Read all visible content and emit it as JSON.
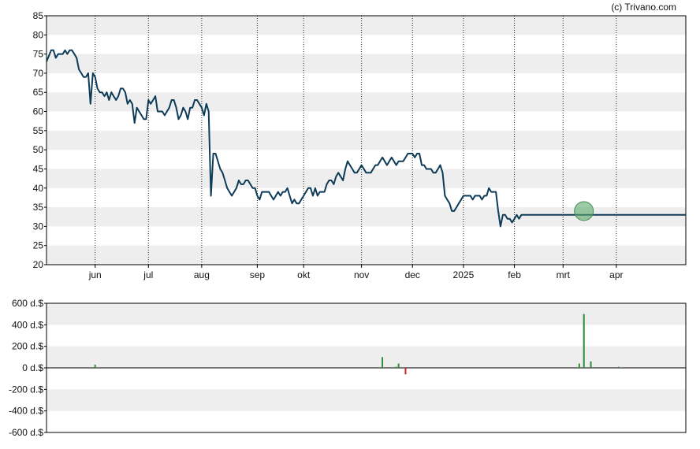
{
  "credit": "(c) Trivano.com",
  "colors": {
    "price_line": "#0d3b58",
    "band": "#eeeeee",
    "marker_fill": "#5aa86b",
    "bar_positive": "#2e8b3a",
    "bar_negative": "#cc2222"
  },
  "chart_data": [
    {
      "type": "line",
      "title": "",
      "ylim": [
        20,
        85
      ],
      "yticks": [
        20,
        25,
        30,
        35,
        40,
        45,
        50,
        55,
        60,
        65,
        70,
        75,
        80,
        85
      ],
      "ytick_labels": [
        "20",
        "25",
        "30",
        "35",
        "40",
        "45",
        "50",
        "55",
        "60",
        "65",
        "70",
        "75",
        "80",
        "85"
      ],
      "x_ticks": [
        {
          "label": "jun",
          "x": 21
        },
        {
          "label": "jul",
          "x": 44
        },
        {
          "label": "aug",
          "x": 67
        },
        {
          "label": "sep",
          "x": 91
        },
        {
          "label": "okt",
          "x": 111
        },
        {
          "label": "nov",
          "x": 136
        },
        {
          "label": "dec",
          "x": 158
        },
        {
          "label": "2025",
          "x": 180
        },
        {
          "label": "feb",
          "x": 202
        },
        {
          "label": "mrt",
          "x": 223
        },
        {
          "label": "apr",
          "x": 246
        }
      ],
      "xlim": [
        0,
        276
      ],
      "grid": "dotted vertical at month ticks, alternating horizontal bands",
      "series": [
        {
          "x": [
            0,
            2,
            3,
            4,
            5,
            6,
            7,
            8,
            9,
            10,
            11,
            12,
            13,
            14,
            15,
            16,
            17,
            18,
            19,
            20,
            21,
            22,
            23,
            24,
            25,
            26,
            27,
            28,
            29,
            30,
            31,
            32,
            33,
            34,
            35,
            36,
            37,
            38,
            39,
            40,
            41,
            42,
            43,
            44,
            45,
            46,
            47,
            48,
            49,
            50,
            51,
            52,
            53,
            54,
            55,
            56,
            57,
            58,
            59,
            60,
            61,
            62,
            63,
            64,
            65,
            66,
            67,
            68,
            69,
            70,
            71,
            72,
            73,
            74,
            75,
            76,
            77,
            78,
            79,
            80,
            81,
            82,
            83,
            84,
            85,
            86,
            87,
            88,
            89,
            90,
            91,
            92,
            93,
            94,
            95,
            96,
            97,
            98,
            99,
            100,
            101,
            102,
            103,
            104,
            105,
            106,
            107,
            108,
            109,
            110,
            111,
            112,
            113,
            114,
            115,
            116,
            117,
            118,
            119,
            120,
            121,
            122,
            123,
            124,
            125,
            126,
            127,
            128,
            129,
            130,
            131,
            132,
            133,
            134,
            135,
            136,
            137,
            138,
            139,
            140,
            141,
            142,
            143,
            144,
            145,
            146,
            147,
            148,
            149,
            150,
            151,
            152,
            153,
            154,
            155,
            156,
            157,
            158,
            159,
            160,
            161,
            162,
            163,
            164,
            165,
            166,
            167,
            168,
            169,
            170,
            171,
            172,
            173,
            174,
            175,
            176,
            177,
            178,
            179,
            180,
            181,
            182,
            183,
            184,
            185,
            186,
            187,
            188,
            189,
            190,
            191,
            192,
            193,
            194,
            195,
            196,
            197,
            198,
            199,
            200,
            201,
            202,
            203,
            204,
            205,
            206,
            207,
            208,
            209,
            210,
            211,
            212,
            213,
            214,
            215,
            216,
            217,
            218,
            219,
            220,
            221,
            222,
            223,
            224,
            225,
            226,
            227,
            228,
            229,
            230,
            231,
            232,
            233,
            234,
            235,
            236,
            237,
            238,
            239,
            240,
            241,
            242,
            243,
            244,
            245,
            246,
            247,
            248,
            249,
            250,
            251,
            252,
            253,
            254,
            255,
            256,
            257,
            258,
            259,
            260,
            261,
            262,
            263,
            264,
            265,
            266,
            267,
            268,
            269,
            270,
            271,
            272,
            273,
            274,
            275,
            276
          ],
          "values": [
            73,
            76,
            76,
            74,
            75,
            75,
            75,
            76,
            75,
            76,
            76,
            75,
            74,
            71,
            70,
            69,
            69,
            70,
            62,
            70,
            69,
            66,
            65,
            65,
            64,
            65,
            63,
            65,
            64,
            63,
            64,
            66,
            66,
            65,
            62,
            63,
            62,
            57,
            61,
            60,
            59,
            58,
            58,
            63,
            62,
            63,
            64,
            60,
            60,
            60,
            59,
            60,
            61,
            63,
            63,
            61,
            58,
            59,
            61,
            60,
            58,
            61,
            61,
            63,
            63,
            62,
            61,
            59,
            62,
            60,
            38,
            49,
            49,
            47,
            45,
            44,
            42,
            40,
            39,
            38,
            39,
            40,
            42,
            41,
            41,
            42,
            42,
            41,
            40,
            40,
            38,
            37,
            39,
            39,
            39,
            39,
            38,
            37,
            38,
            39,
            38,
            39,
            39,
            40,
            38,
            36,
            37,
            36,
            36,
            37,
            38,
            39,
            40,
            40,
            38,
            40,
            38,
            39,
            39,
            39,
            41,
            42,
            42,
            41,
            43,
            44,
            43,
            42,
            45,
            47,
            46,
            45,
            44,
            44,
            45,
            46,
            45,
            44,
            44,
            44,
            45,
            46,
            46,
            47,
            48,
            47,
            46,
            47,
            48,
            47,
            46,
            47,
            47,
            47,
            48,
            49,
            49,
            49,
            48,
            49,
            49,
            46,
            46,
            45,
            45,
            45,
            44,
            44,
            45,
            46,
            44,
            38,
            37,
            36,
            34,
            34,
            35,
            36,
            37,
            38,
            38,
            38,
            38,
            37,
            38,
            38,
            38,
            37,
            38,
            38,
            40,
            39,
            39,
            39,
            34,
            30,
            33,
            33,
            32,
            32,
            31,
            32,
            33,
            32,
            33,
            33,
            33,
            33,
            33,
            33,
            33,
            33,
            33,
            33,
            33,
            33,
            33,
            33,
            33,
            33,
            33,
            33,
            33,
            33,
            33,
            33,
            33,
            33,
            33,
            33,
            33,
            33,
            33,
            33,
            33,
            33,
            33,
            33,
            33,
            33,
            33,
            33,
            33,
            33,
            33,
            33,
            33,
            33,
            33,
            33,
            33,
            33,
            33,
            33,
            33,
            33,
            33,
            33,
            33,
            33,
            33,
            33,
            33,
            33,
            33,
            33,
            33,
            33,
            33,
            33,
            33,
            33,
            33,
            33,
            33,
            33
          ]
        }
      ],
      "annotations": [
        {
          "type": "circle-marker",
          "x": 232,
          "y": 34
        }
      ]
    },
    {
      "type": "bar",
      "title": "",
      "ylim": [
        -600,
        600
      ],
      "yticks": [
        -600,
        -400,
        -200,
        0,
        200,
        400,
        600
      ],
      "ytick_labels": [
        "-600 d.$",
        "-400 d.$",
        "-200 d.$",
        "0 d.$",
        "200 d.$",
        "400 d.$",
        "600 d.$"
      ],
      "xlim": [
        0,
        276
      ],
      "bars": [
        {
          "x": 21,
          "value": 30
        },
        {
          "x": 145,
          "value": 100
        },
        {
          "x": 151,
          "value": 10
        },
        {
          "x": 152,
          "value": 40
        },
        {
          "x": 155,
          "value": -60
        },
        {
          "x": 230,
          "value": 40
        },
        {
          "x": 232,
          "value": 500
        },
        {
          "x": 235,
          "value": 60
        },
        {
          "x": 247,
          "value": 10
        }
      ]
    }
  ]
}
